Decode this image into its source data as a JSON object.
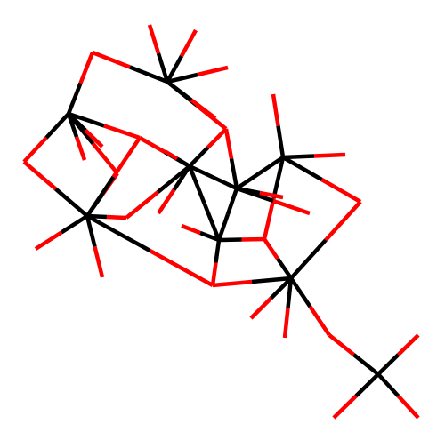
{
  "molecule": {
    "colors": {
      "C": "#000000",
      "O": "#ff0000",
      "background": "#ffffff"
    },
    "atoms": [
      {
        "id": "C1",
        "el": "C"
      },
      {
        "id": "C2",
        "el": "C"
      },
      {
        "id": "C3",
        "el": "C"
      },
      {
        "id": "C4",
        "el": "C"
      },
      {
        "id": "C5",
        "el": "C"
      },
      {
        "id": "C6",
        "el": "C"
      },
      {
        "id": "C7",
        "el": "C"
      },
      {
        "id": "C8",
        "el": "C"
      },
      {
        "id": "C9",
        "el": "C"
      },
      {
        "id": "O1",
        "el": "O"
      },
      {
        "id": "O2",
        "el": "O"
      },
      {
        "id": "O3",
        "el": "O"
      },
      {
        "id": "O4",
        "el": "O"
      },
      {
        "id": "O5",
        "el": "O"
      },
      {
        "id": "O6",
        "el": "O"
      },
      {
        "id": "O7",
        "el": "O"
      },
      {
        "id": "O8",
        "el": "O"
      },
      {
        "id": "O9",
        "el": "O"
      },
      {
        "id": "O10",
        "el": "O"
      }
    ]
  }
}
